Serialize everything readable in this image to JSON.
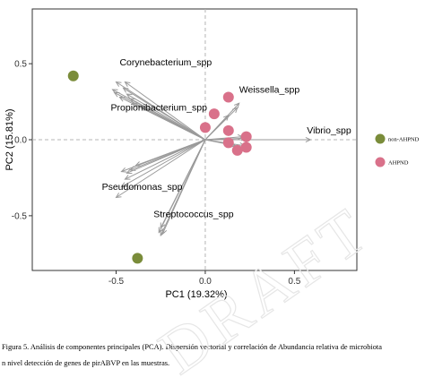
{
  "chart_data": {
    "type": "scatter",
    "xlabel": "PC1 (19.32%)",
    "ylabel": "PC2 (15.81%)",
    "xlim": [
      -0.97,
      0.85
    ],
    "ylim": [
      -0.86,
      0.86
    ],
    "x_ticks": [
      -0.5,
      0.0,
      0.5
    ],
    "x_tick_labels": [
      "-0.5",
      "0.0",
      "0.5"
    ],
    "y_ticks": [
      -0.5,
      0.0,
      0.5
    ],
    "y_tick_labels": [
      "-0.5",
      "0.0",
      "0.5"
    ],
    "series": [
      {
        "name": "non-AHPND",
        "color": "#7a8c3a",
        "points": [
          [
            -0.74,
            0.42
          ],
          [
            -0.38,
            -0.78
          ]
        ]
      },
      {
        "name": "AHPND",
        "color": "#d9718a",
        "points": [
          [
            0.13,
            0.28
          ],
          [
            0.05,
            0.17
          ],
          [
            0.0,
            0.08
          ],
          [
            0.13,
            0.06
          ],
          [
            0.23,
            0.02
          ],
          [
            0.13,
            -0.02
          ],
          [
            0.18,
            -0.07
          ],
          [
            0.23,
            -0.05
          ]
        ]
      }
    ],
    "vectors": [
      {
        "x": -0.5,
        "y": 0.38
      },
      {
        "x": -0.52,
        "y": 0.33
      },
      {
        "x": -0.51,
        "y": 0.31
      },
      {
        "x": -0.46,
        "y": 0.34
      },
      {
        "x": -0.44,
        "y": 0.3
      },
      {
        "x": -0.42,
        "y": 0.27
      },
      {
        "x": -0.41,
        "y": 0.24
      },
      {
        "x": -0.48,
        "y": 0.28
      },
      {
        "x": -0.45,
        "y": 0.38
      },
      {
        "x": -0.5,
        "y": -0.38
      },
      {
        "x": -0.47,
        "y": -0.31
      },
      {
        "x": -0.45,
        "y": -0.26
      },
      {
        "x": -0.44,
        "y": -0.22
      },
      {
        "x": -0.42,
        "y": -0.2
      },
      {
        "x": -0.39,
        "y": -0.17
      },
      {
        "x": -0.47,
        "y": -0.21
      },
      {
        "x": -0.26,
        "y": -0.61
      },
      {
        "x": -0.25,
        "y": -0.63
      },
      {
        "x": -0.24,
        "y": -0.62
      },
      {
        "x": -0.25,
        "y": -0.58
      },
      {
        "x": 0.19,
        "y": 0.24
      },
      {
        "x": 0.18,
        "y": 0.21
      },
      {
        "x": 0.13,
        "y": 0.16
      },
      {
        "x": 0.21,
        "y": 0.02
      },
      {
        "x": 0.23,
        "y": 0.01
      },
      {
        "x": 0.22,
        "y": -0.04
      },
      {
        "x": 0.17,
        "y": -0.04
      },
      {
        "x": 0.14,
        "y": -0.03
      },
      {
        "x": 0.59,
        "y": 0.0
      }
    ],
    "labels": [
      {
        "text": "Corynebacterium_spp",
        "x": -0.48,
        "y": 0.49
      },
      {
        "text": "Propionibacterium_spp",
        "x": -0.53,
        "y": 0.19
      },
      {
        "text": "Pseudomonas_spp",
        "x": -0.58,
        "y": -0.33
      },
      {
        "text": "Streptococcus_spp",
        "x": -0.29,
        "y": -0.51
      },
      {
        "text": "Weissella_spp",
        "x": 0.19,
        "y": 0.31
      },
      {
        "text": "Vibrio_spp",
        "x": 0.57,
        "y": 0.04
      }
    ],
    "legend": {
      "placement": "right",
      "entries": [
        {
          "label": "non-AHPND",
          "color": "#7a8c3a"
        },
        {
          "label": "AHPND",
          "color": "#d9718a"
        }
      ]
    }
  },
  "caption": {
    "line1": "Figura 5. Análisis de componentes principales (PCA). Dispersión vectorial y correlación de Abundancia relativa de microbiota",
    "line2": "n nivel detección de genes de pirABVP en las muestras."
  },
  "watermark": "DRAFT"
}
